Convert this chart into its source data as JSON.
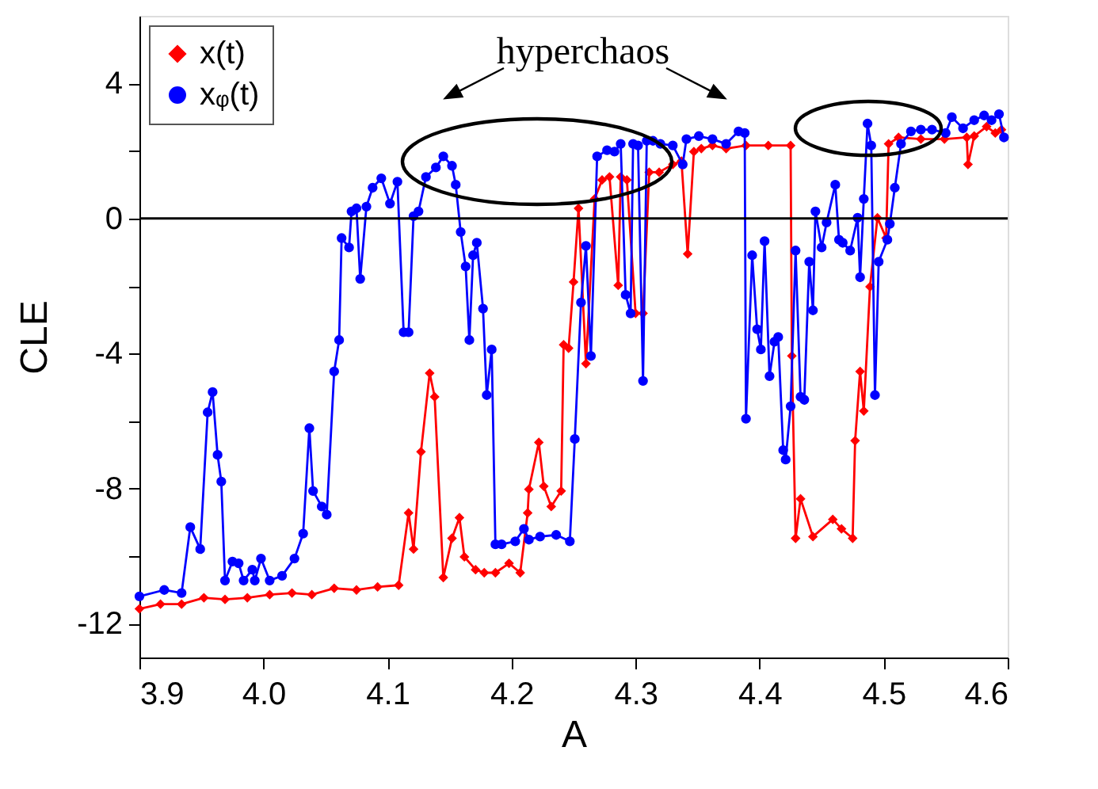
{
  "chart_data": {
    "type": "line",
    "xlabel": "A",
    "ylabel": "CLE",
    "xlim": [
      3.9,
      4.6
    ],
    "xticks": [
      3.9,
      {
        "value": 4,
        "label": "4.0"
      },
      4.1,
      4.2,
      4.3,
      4.4,
      4.5,
      4.6
    ],
    "ylim": [
      -13,
      6
    ],
    "yticks": [
      -12,
      {
        "value": -10,
        "label": null
      },
      -8,
      {
        "value": -6,
        "label": null
      },
      -4,
      {
        "value": -2,
        "label": null
      },
      0,
      {
        "value": 2,
        "label": null
      },
      4
    ],
    "grid": false,
    "legend": "top left",
    "ref_lines": [
      {
        "axis": "y",
        "value": 0,
        "color": "#000000",
        "line_style": "solid"
      }
    ],
    "annotations": [
      "hyperchaos"
    ],
    "series": [
      {
        "name": "x(t)",
        "color": "#ff0000",
        "marker": "diamond",
        "line_style": "solid",
        "x": [
          3.9,
          3.917,
          3.934,
          3.952,
          3.969,
          3.987,
          4.005,
          4.023,
          4.039,
          4.057,
          4.075,
          4.092,
          4.109,
          4.117,
          4.121,
          4.127,
          4.134,
          4.138,
          4.145,
          4.152,
          4.158,
          4.162,
          4.171,
          4.178,
          4.187,
          4.198,
          4.207,
          4.213,
          4.214,
          4.222,
          4.226,
          4.232,
          4.24,
          4.242,
          4.246,
          4.25,
          4.254,
          4.26,
          4.267,
          4.273,
          4.279,
          4.286,
          4.288,
          4.293,
          4.3,
          4.306,
          4.311,
          4.319,
          4.33,
          4.337,
          4.342,
          4.347,
          4.353,
          4.362,
          4.373,
          4.389,
          4.407,
          4.425,
          4.426,
          4.429,
          4.433,
          4.443,
          4.459,
          4.466,
          4.475,
          4.477,
          4.481,
          4.484,
          4.489,
          4.495,
          4.502,
          4.504,
          4.512,
          4.53,
          4.549,
          4.567,
          4.568,
          4.573,
          4.583,
          4.59,
          4.595
        ],
        "values": [
          -11.56,
          -11.42,
          -11.42,
          -11.23,
          -11.28,
          -11.23,
          -11.14,
          -11.09,
          -11.14,
          -10.95,
          -11.0,
          -10.91,
          -10.86,
          -8.72,
          -9.79,
          -6.91,
          -4.58,
          -5.28,
          -10.63,
          -9.47,
          -8.86,
          -10.02,
          -10.4,
          -10.49,
          -10.49,
          -10.21,
          -10.49,
          -8.72,
          -8.02,
          -6.63,
          -7.93,
          -8.53,
          -8.07,
          -3.74,
          -3.84,
          -1.88,
          0.3,
          -4.3,
          0.58,
          1.14,
          1.23,
          -1.98,
          1.23,
          1.14,
          -2.81,
          -2.81,
          1.37,
          1.37,
          1.6,
          1.7,
          -1.05,
          1.98,
          2.07,
          2.16,
          2.07,
          2.16,
          2.16,
          2.16,
          -4.07,
          -9.47,
          -8.3,
          -9.42,
          -8.91,
          -9.19,
          -9.47,
          -6.58,
          -4.53,
          -5.7,
          -2.02,
          0.02,
          -0.58,
          2.21,
          2.4,
          2.35,
          2.35,
          2.4,
          1.6,
          2.44,
          2.72,
          2.53,
          2.63
        ]
      },
      {
        "name": "xᵩ(t)",
        "color": "#0000ff",
        "marker": "circle",
        "line_style": "solid",
        "x": [
          3.9,
          3.92,
          3.934,
          3.941,
          3.949,
          3.955,
          3.959,
          3.963,
          3.966,
          3.969,
          3.975,
          3.98,
          3.984,
          3.991,
          3.993,
          3.998,
          4.005,
          4.015,
          4.025,
          4.032,
          4.037,
          4.04,
          4.047,
          4.051,
          4.057,
          4.061,
          4.063,
          4.069,
          4.071,
          4.075,
          4.078,
          4.083,
          4.088,
          4.095,
          4.102,
          4.108,
          4.113,
          4.117,
          4.121,
          4.125,
          4.131,
          4.139,
          4.145,
          4.152,
          4.155,
          4.159,
          4.163,
          4.166,
          4.169,
          4.172,
          4.177,
          4.18,
          4.184,
          4.187,
          4.192,
          4.203,
          4.21,
          4.214,
          4.223,
          4.236,
          4.247,
          4.251,
          4.256,
          4.26,
          4.264,
          4.269,
          4.277,
          4.283,
          4.288,
          4.292,
          4.296,
          4.298,
          4.302,
          4.306,
          4.309,
          4.314,
          4.32,
          4.33,
          4.338,
          4.341,
          4.351,
          4.362,
          4.373,
          4.383,
          4.388,
          4.389,
          4.394,
          4.398,
          4.401,
          4.404,
          4.408,
          4.412,
          4.415,
          4.419,
          4.421,
          4.425,
          4.429,
          4.433,
          4.436,
          4.44,
          4.443,
          4.445,
          4.45,
          4.454,
          4.461,
          4.464,
          4.467,
          4.473,
          4.479,
          4.481,
          4.484,
          4.487,
          4.49,
          4.493,
          4.496,
          4.503,
          4.505,
          4.509,
          4.514,
          4.522,
          4.53,
          4.539,
          4.55,
          4.555,
          4.564,
          4.573,
          4.581,
          4.587,
          4.593,
          4.597
        ],
        "values": [
          -11.19,
          -11.0,
          -11.09,
          -9.14,
          -9.79,
          -5.74,
          -5.14,
          -7.0,
          -7.79,
          -10.72,
          -10.16,
          -10.21,
          -10.72,
          -10.4,
          -10.72,
          -10.07,
          -10.72,
          -10.58,
          -10.07,
          -9.33,
          -6.21,
          -8.07,
          -8.53,
          -8.77,
          -4.53,
          -3.6,
          -0.58,
          -0.86,
          0.21,
          0.3,
          -1.79,
          0.35,
          0.91,
          1.19,
          0.44,
          1.09,
          -3.37,
          -3.37,
          0.07,
          0.21,
          1.23,
          1.51,
          1.84,
          1.56,
          1.0,
          -0.4,
          -1.42,
          -3.6,
          -1.09,
          -0.72,
          -2.67,
          -5.23,
          -3.88,
          -9.65,
          -9.65,
          -9.56,
          -9.19,
          -9.51,
          -9.42,
          -9.37,
          -9.56,
          -6.53,
          -2.49,
          -0.81,
          -4.07,
          1.84,
          2.02,
          1.98,
          2.21,
          -2.26,
          -2.81,
          2.21,
          2.16,
          -4.81,
          2.3,
          2.3,
          2.21,
          2.16,
          1.6,
          2.35,
          2.44,
          2.35,
          2.21,
          2.58,
          2.53,
          -5.93,
          -1.09,
          -3.28,
          -3.88,
          -0.67,
          -4.67,
          -3.65,
          -3.51,
          -6.86,
          -7.14,
          -5.56,
          -0.95,
          -5.28,
          -5.37,
          -1.28,
          -2.72,
          0.21,
          -0.86,
          -0.12,
          1.0,
          -0.63,
          -0.72,
          -0.95,
          0.02,
          -1.74,
          0.58,
          2.81,
          2.16,
          -5.23,
          -1.28,
          -0.63,
          -0.16,
          0.91,
          2.21,
          2.58,
          2.63,
          2.63,
          2.53,
          3.0,
          2.67,
          2.91,
          3.05,
          2.91,
          3.09,
          2.4
        ]
      }
    ]
  }
}
